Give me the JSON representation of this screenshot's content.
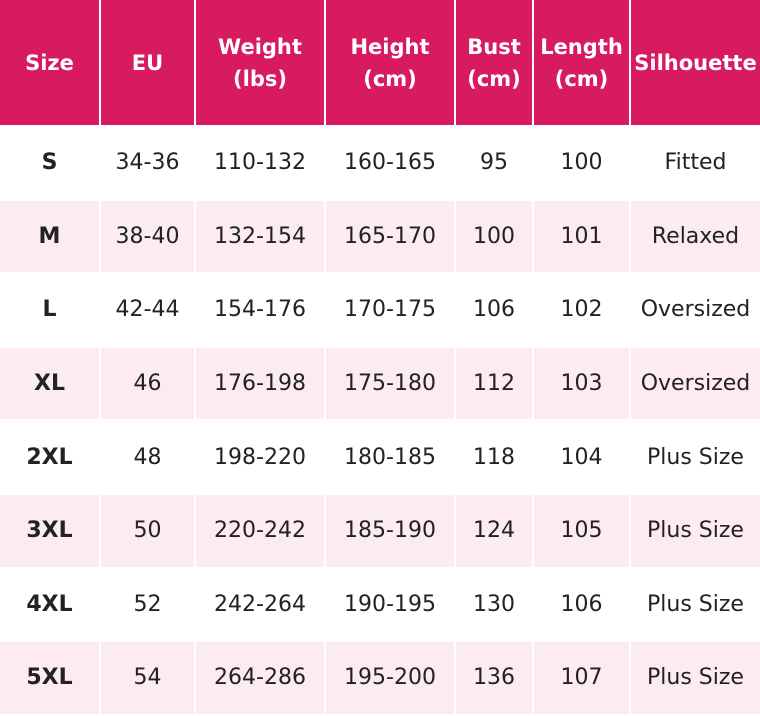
{
  "colors": {
    "header_bg": "#d81b5e",
    "alt_row_bg": "#fcecf1",
    "row_bg": "#ffffff"
  },
  "headers": [
    [
      "Size"
    ],
    [
      "EU"
    ],
    [
      "Weight",
      "(lbs)"
    ],
    [
      "Height",
      "(cm)"
    ],
    [
      "Bust",
      "(cm)"
    ],
    [
      "Length",
      "(cm)"
    ],
    [
      "Silhouette"
    ]
  ],
  "rows": [
    [
      "S",
      "34-36",
      "110-132",
      "160-165",
      "95",
      "100",
      "Fitted"
    ],
    [
      "M",
      "38-40",
      "132-154",
      "165-170",
      "100",
      "101",
      "Relaxed"
    ],
    [
      "L",
      "42-44",
      "154-176",
      "170-175",
      "106",
      "102",
      "Oversized"
    ],
    [
      "XL",
      "46",
      "176-198",
      "175-180",
      "112",
      "103",
      "Oversized"
    ],
    [
      "2XL",
      "48",
      "198-220",
      "180-185",
      "118",
      "104",
      "Plus Size"
    ],
    [
      "3XL",
      "50",
      "220-242",
      "185-190",
      "124",
      "105",
      "Plus Size"
    ],
    [
      "4XL",
      "52",
      "242-264",
      "190-195",
      "130",
      "106",
      "Plus Size"
    ],
    [
      "5XL",
      "54",
      "264-286",
      "195-200",
      "136",
      "107",
      "Plus Size"
    ]
  ]
}
